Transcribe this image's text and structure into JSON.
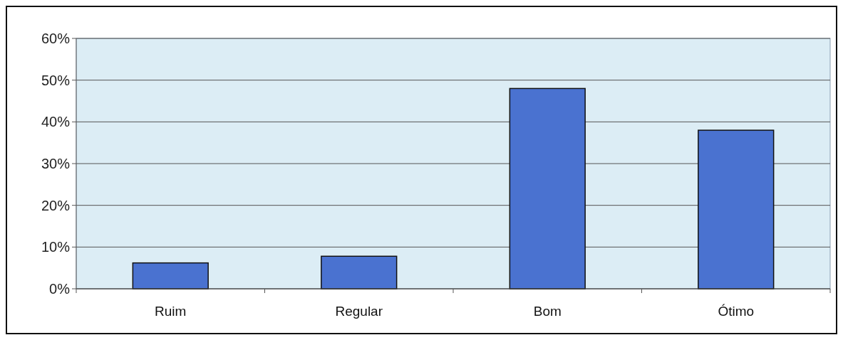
{
  "chart_data": {
    "type": "bar",
    "categories": [
      "Ruim",
      "Regular",
      "Bom",
      "Ótimo"
    ],
    "values": [
      6.2,
      7.8,
      48,
      38
    ],
    "color": "#4a72d0",
    "ylim": [
      0,
      60
    ],
    "yticks": [
      {
        "value": 0,
        "label": "0%"
      },
      {
        "value": 10,
        "label": "10%"
      },
      {
        "value": 20,
        "label": "20%"
      },
      {
        "value": 30,
        "label": "30%"
      },
      {
        "value": 40,
        "label": "40%"
      },
      {
        "value": 50,
        "label": "50%"
      },
      {
        "value": 60,
        "label": "60%"
      }
    ],
    "grid": "y"
  }
}
